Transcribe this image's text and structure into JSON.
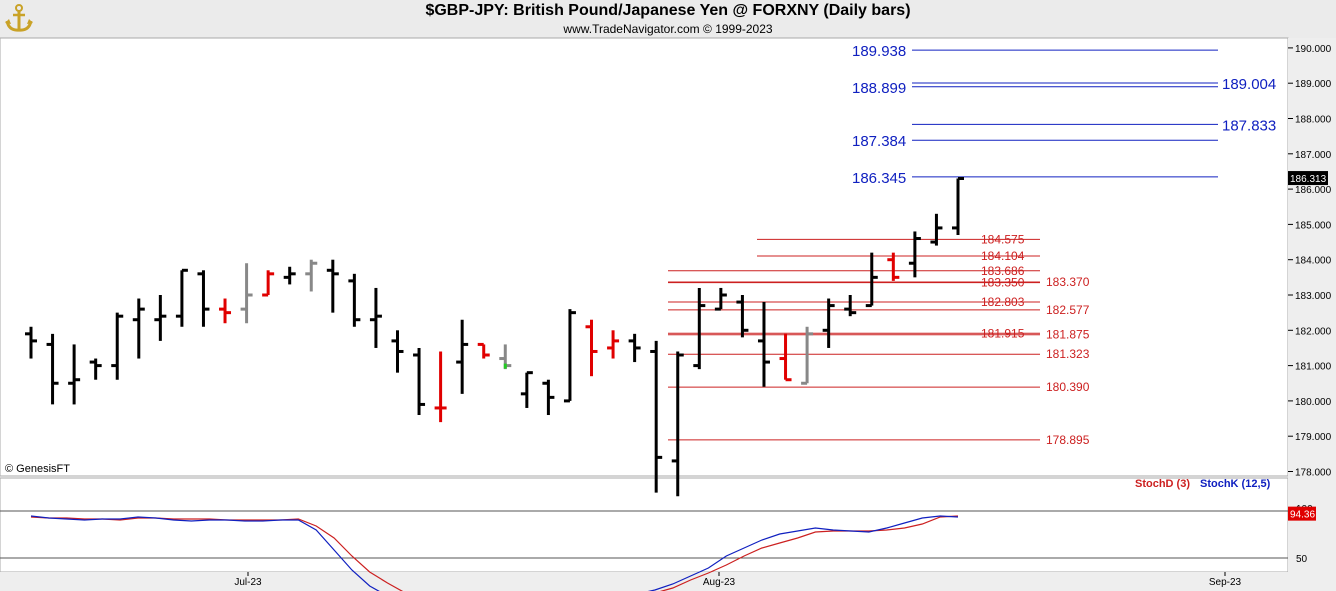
{
  "header": {
    "title": "$GBP-JPY:  British Pound/Japanese Yen @ FORXNY  (Daily bars)",
    "subtitle": "www.TradeNavigator.com © 1999-2023",
    "watermark": "© GenesisFT"
  },
  "colors": {
    "price_bar": "#000000",
    "down_bar": "#e00000",
    "neutral_bar": "#888888",
    "up_flag": "#22cc22",
    "fib_upper": "#1020c0",
    "fib_lower": "#cc2020",
    "stoch_d": "#cc2020",
    "stoch_k": "#1020c0"
  },
  "chart_data": [
    {
      "type": "ohlc",
      "title": "$GBP-JPY:  British Pound/Japanese Yen @ FORXNY  (Daily bars)",
      "y_axis": {
        "range": [
          177.8,
          190.3
        ],
        "ticks": [
          "178.000",
          "179.000",
          "180.000",
          "181.000",
          "182.000",
          "183.000",
          "184.000",
          "185.000",
          "186.000",
          "187.000",
          "188.000",
          "189.000",
          "190.000"
        ],
        "position": "right"
      },
      "x_axis": {
        "ticks": [
          "Jul-23",
          "Aug-23",
          "Sep-23"
        ]
      },
      "last_price": "186.313",
      "bars": [
        {
          "h": 182.1,
          "l": 181.2,
          "o": 181.9,
          "c": 181.7,
          "k": "b"
        },
        {
          "h": 181.9,
          "l": 179.9,
          "o": 181.6,
          "c": 180.5,
          "k": "b"
        },
        {
          "h": 181.6,
          "l": 179.9,
          "o": 180.5,
          "c": 180.6,
          "k": "b"
        },
        {
          "h": 181.2,
          "l": 180.6,
          "o": 181.1,
          "c": 181.0,
          "k": "b"
        },
        {
          "h": 182.5,
          "l": 180.6,
          "o": 181.0,
          "c": 182.4,
          "k": "b"
        },
        {
          "h": 182.9,
          "l": 181.2,
          "o": 182.3,
          "c": 182.6,
          "k": "b"
        },
        {
          "h": 183.0,
          "l": 181.7,
          "o": 182.3,
          "c": 182.4,
          "k": "b"
        },
        {
          "h": 183.7,
          "l": 182.1,
          "o": 182.4,
          "c": 183.7,
          "k": "b"
        },
        {
          "h": 183.7,
          "l": 182.1,
          "o": 183.6,
          "c": 182.6,
          "k": "b"
        },
        {
          "h": 182.9,
          "l": 182.2,
          "o": 182.6,
          "c": 182.5,
          "k": "r"
        },
        {
          "h": 183.9,
          "l": 182.2,
          "o": 182.6,
          "c": 183.0,
          "k": "g"
        },
        {
          "h": 183.7,
          "l": 183.0,
          "o": 183.0,
          "c": 183.6,
          "k": "r"
        },
        {
          "h": 183.8,
          "l": 183.3,
          "o": 183.5,
          "c": 183.6,
          "k": "b"
        },
        {
          "h": 184.0,
          "l": 183.1,
          "o": 183.6,
          "c": 183.9,
          "k": "g"
        },
        {
          "h": 184.0,
          "l": 182.5,
          "o": 183.7,
          "c": 183.6,
          "k": "b"
        },
        {
          "h": 183.6,
          "l": 182.1,
          "o": 183.4,
          "c": 182.3,
          "k": "b"
        },
        {
          "h": 183.2,
          "l": 181.5,
          "o": 182.3,
          "c": 182.4,
          "k": "b"
        },
        {
          "h": 182.0,
          "l": 180.8,
          "o": 181.7,
          "c": 181.4,
          "k": "b"
        },
        {
          "h": 181.5,
          "l": 179.6,
          "o": 181.3,
          "c": 179.9,
          "k": "b"
        },
        {
          "h": 181.4,
          "l": 179.4,
          "o": 179.8,
          "c": 179.8,
          "k": "r"
        },
        {
          "h": 182.3,
          "l": 180.2,
          "o": 181.1,
          "c": 181.6,
          "k": "b"
        },
        {
          "h": 181.6,
          "l": 181.2,
          "o": 181.6,
          "c": 181.3,
          "k": "r"
        },
        {
          "h": 181.6,
          "l": 180.9,
          "o": 181.2,
          "c": 181.0,
          "k": "g"
        },
        {
          "h": 180.8,
          "l": 179.8,
          "o": 180.2,
          "c": 180.8,
          "k": "b"
        },
        {
          "h": 180.6,
          "l": 179.6,
          "o": 180.5,
          "c": 180.1,
          "k": "b"
        },
        {
          "h": 182.6,
          "l": 180.0,
          "o": 180.0,
          "c": 182.5,
          "k": "b"
        },
        {
          "h": 182.3,
          "l": 180.7,
          "o": 182.1,
          "c": 181.4,
          "k": "r"
        },
        {
          "h": 182.0,
          "l": 181.2,
          "o": 181.5,
          "c": 181.7,
          "k": "r"
        },
        {
          "h": 181.9,
          "l": 181.1,
          "o": 181.7,
          "c": 181.5,
          "k": "b"
        },
        {
          "h": 181.7,
          "l": 177.4,
          "o": 181.4,
          "c": 178.4,
          "k": "b"
        },
        {
          "h": 181.4,
          "l": 177.3,
          "o": 178.3,
          "c": 181.3,
          "k": "b"
        },
        {
          "h": 183.2,
          "l": 180.9,
          "o": 181.0,
          "c": 182.7,
          "k": "b"
        },
        {
          "h": 183.2,
          "l": 182.6,
          "o": 182.6,
          "c": 183.0,
          "k": "b"
        },
        {
          "h": 183.0,
          "l": 181.8,
          "o": 182.8,
          "c": 182.0,
          "k": "b"
        },
        {
          "h": 182.8,
          "l": 180.4,
          "o": 181.7,
          "c": 181.1,
          "k": "b"
        },
        {
          "h": 181.9,
          "l": 180.6,
          "o": 181.2,
          "c": 180.6,
          "k": "r"
        },
        {
          "h": 182.1,
          "l": 180.5,
          "o": 180.5,
          "c": 181.9,
          "k": "g"
        },
        {
          "h": 182.9,
          "l": 181.5,
          "o": 182.0,
          "c": 182.7,
          "k": "b"
        },
        {
          "h": 183.0,
          "l": 182.4,
          "o": 182.6,
          "c": 182.5,
          "k": "b"
        },
        {
          "h": 184.2,
          "l": 182.7,
          "o": 182.7,
          "c": 183.5,
          "k": "b"
        },
        {
          "h": 184.2,
          "l": 183.4,
          "o": 184.0,
          "c": 183.5,
          "k": "r"
        },
        {
          "h": 184.8,
          "l": 183.5,
          "o": 183.9,
          "c": 184.6,
          "k": "b"
        },
        {
          "h": 185.3,
          "l": 184.4,
          "o": 184.5,
          "c": 184.9,
          "k": "b"
        },
        {
          "h": 186.3,
          "l": 184.7,
          "o": 184.9,
          "c": 186.3,
          "k": "b"
        }
      ]
    },
    {
      "type": "line",
      "title": "",
      "series": [
        {
          "name": "StochD (3)",
          "values": [
            91,
            90,
            90,
            89,
            89,
            88,
            90,
            90,
            89,
            89,
            89,
            88,
            88,
            88,
            88,
            89,
            82,
            70,
            52,
            36,
            25,
            15,
            12,
            13,
            12,
            12,
            12,
            13,
            12,
            12,
            13,
            12,
            12,
            13,
            13,
            15,
            20,
            28,
            35,
            43,
            52,
            60,
            65,
            70,
            76,
            77,
            77,
            77,
            78,
            80,
            84,
            91,
            92
          ]
        },
        {
          "name": "StochK (12,5)",
          "values": [
            92,
            90,
            89,
            88,
            89,
            89,
            91,
            90,
            88,
            87,
            88,
            88,
            87,
            87,
            88,
            88,
            78,
            58,
            38,
            22,
            12,
            9,
            10,
            11,
            13,
            12,
            12,
            14,
            12,
            12,
            14,
            12,
            12,
            13,
            14,
            18,
            24,
            32,
            40,
            52,
            60,
            68,
            74,
            77,
            80,
            78,
            77,
            76,
            80,
            85,
            90,
            92,
            91
          ]
        }
      ],
      "y_axis": {
        "ticks": [
          "100",
          "50"
        ],
        "position": "right"
      },
      "last_value": "94.36"
    }
  ],
  "fib_upper": [
    {
      "label": "189.938",
      "side": "left"
    },
    {
      "label": "189.004",
      "side": "right"
    },
    {
      "label": "188.899",
      "side": "left"
    },
    {
      "label": "187.833",
      "side": "right"
    },
    {
      "label": "187.384",
      "side": "left"
    },
    {
      "label": "186.345",
      "side": "left"
    }
  ],
  "fib_lower": [
    {
      "label": "184.575"
    },
    {
      "label": "184.104"
    },
    {
      "label": "183.686"
    },
    {
      "label": "183.370"
    },
    {
      "label": "183.350"
    },
    {
      "label": "182.803"
    },
    {
      "label": "182.577"
    },
    {
      "label": "181.915"
    },
    {
      "label": "181.875"
    },
    {
      "label": "181.323"
    },
    {
      "label": "180.390"
    },
    {
      "label": "178.895"
    }
  ]
}
